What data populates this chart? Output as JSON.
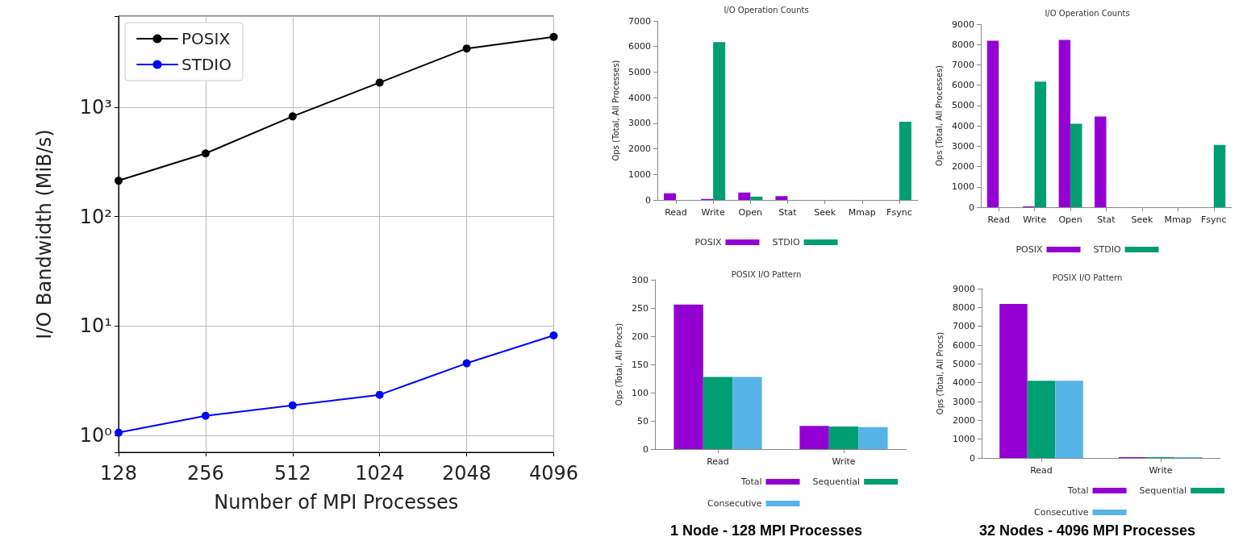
{
  "chart_data": [
    {
      "type": "line",
      "xlabel": "Number of MPI Processes",
      "ylabel": "I/O Bandwidth (MiB/s)",
      "categories": [
        "128",
        "256",
        "512",
        "1024",
        "2048",
        "4096"
      ],
      "series": [
        {
          "name": "POSIX",
          "color": "#000000",
          "values": [
            213,
            378,
            824,
            1680,
            3440,
            4390
          ]
        },
        {
          "name": "STDIO",
          "color": "#0000ff",
          "values": [
            1.06,
            1.51,
            1.88,
            2.35,
            4.56,
            8.2
          ]
        }
      ],
      "log": "y",
      "ylim": [
        0.7,
        6800
      ],
      "yticks": [
        {
          "value": 1,
          "label": "10⁰"
        },
        {
          "value": 10,
          "label": "10¹"
        },
        {
          "value": 100,
          "label": "10²"
        },
        {
          "value": 1000,
          "label": "10³"
        }
      ],
      "grid": true,
      "legend": "top left",
      "marker": "circle",
      "line_style": "solid"
    },
    {
      "type": "bar",
      "title": "I/O Operation Counts",
      "ylabel": "Ops (Total, All Processes)",
      "categories": [
        "Read",
        "Write",
        "Open",
        "Stat",
        "Seek",
        "Mmap",
        "Fsync"
      ],
      "series": [
        {
          "name": "POSIX",
          "color": "#9400d3",
          "values": [
            260,
            40,
            290,
            150,
            0,
            0,
            0
          ]
        },
        {
          "name": "STDIO",
          "color": "#009e73",
          "values": [
            0,
            6170,
            130,
            0,
            0,
            0,
            3060
          ]
        }
      ],
      "ylim": [
        0,
        7000
      ],
      "yticks": [
        0,
        1000,
        2000,
        3000,
        4000,
        5000,
        6000,
        7000
      ],
      "legend": "bottom"
    },
    {
      "type": "bar",
      "title": "I/O Operation Counts",
      "ylabel": "Ops (Total, All Processes)",
      "categories": [
        "Read",
        "Write",
        "Open",
        "Stat",
        "Seek",
        "Mmap",
        "Fsync"
      ],
      "series": [
        {
          "name": "POSIX",
          "color": "#9400d3",
          "values": [
            8190,
            40,
            8230,
            4460,
            0,
            0,
            0
          ]
        },
        {
          "name": "STDIO",
          "color": "#009e73",
          "values": [
            0,
            6180,
            4100,
            0,
            0,
            0,
            3060
          ]
        }
      ],
      "ylim": [
        0,
        9000
      ],
      "yticks": [
        0,
        1000,
        2000,
        3000,
        4000,
        5000,
        6000,
        7000,
        8000,
        9000
      ],
      "legend": "bottom"
    },
    {
      "type": "bar",
      "title": "POSIX I/O Pattern",
      "ylabel": "Ops (Total, All Procs)",
      "categories": [
        "Read",
        "Write"
      ],
      "series": [
        {
          "name": "Total",
          "color": "#9400d3",
          "values": [
            256,
            41
          ]
        },
        {
          "name": "Sequential",
          "color": "#009e73",
          "values": [
            128,
            40
          ]
        },
        {
          "name": "Consecutive",
          "color": "#56b4e9",
          "values": [
            128,
            39
          ]
        }
      ],
      "ylim": [
        0,
        300
      ],
      "yticks": [
        0,
        50,
        100,
        150,
        200,
        250,
        300
      ],
      "legend": "bottom",
      "annotations": [
        "1 Node - 128 MPI Processes"
      ]
    },
    {
      "type": "bar",
      "title": "POSIX I/O Pattern",
      "ylabel": "Ops (Total, All Procs)",
      "categories": [
        "Read",
        "Write"
      ],
      "series": [
        {
          "name": "Total",
          "color": "#9400d3",
          "values": [
            8190,
            40
          ]
        },
        {
          "name": "Sequential",
          "color": "#009e73",
          "values": [
            4100,
            40
          ]
        },
        {
          "name": "Consecutive",
          "color": "#56b4e9",
          "values": [
            4100,
            40
          ]
        }
      ],
      "ylim": [
        0,
        9000
      ],
      "yticks": [
        0,
        1000,
        2000,
        3000,
        4000,
        5000,
        6000,
        7000,
        8000,
        9000
      ],
      "legend": "bottom",
      "annotations": [
        "32 Nodes - 4096 MPI Processes"
      ]
    }
  ]
}
